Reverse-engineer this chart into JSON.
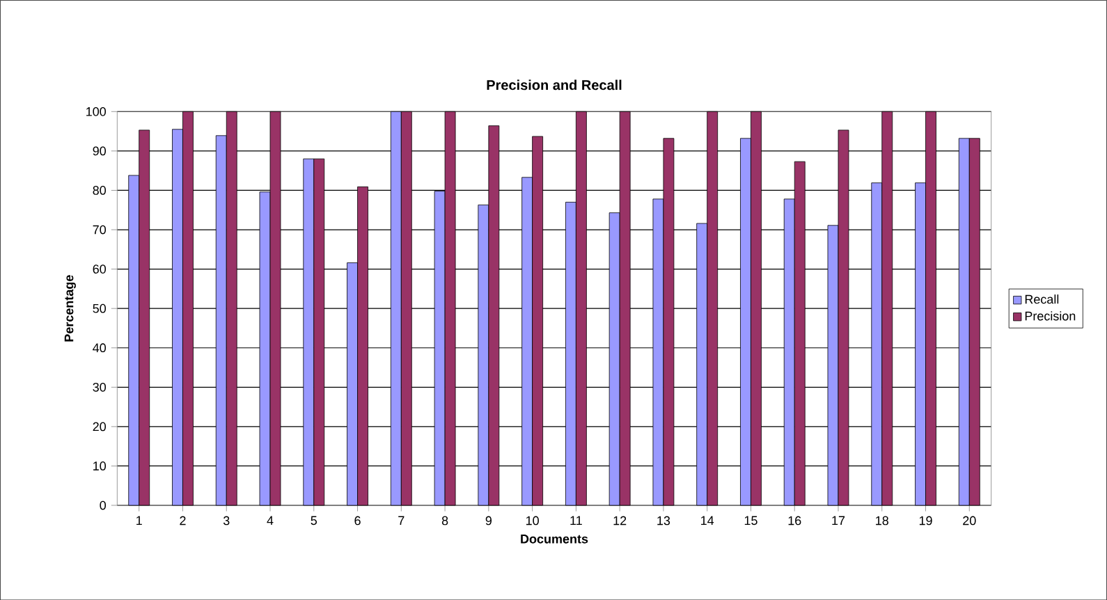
{
  "chart_data": {
    "type": "bar",
    "title": "Precision and Recall",
    "xlabel": "Documents",
    "ylabel": "Percentage",
    "categories": [
      "1",
      "2",
      "3",
      "4",
      "5",
      "6",
      "7",
      "8",
      "9",
      "10",
      "11",
      "12",
      "13",
      "14",
      "15",
      "16",
      "17",
      "18",
      "19",
      "20"
    ],
    "series": [
      {
        "name": "Recall",
        "color": "#9999ff",
        "values": [
          83.8,
          95.5,
          93.9,
          79.6,
          88,
          61.6,
          100,
          79.8,
          76.3,
          83.3,
          77,
          74.3,
          77.8,
          71.6,
          93.2,
          77.8,
          71.1,
          81.9,
          81.9,
          93.2
        ]
      },
      {
        "name": "Precision",
        "color": "#993366",
        "values": [
          95.3,
          100,
          100,
          100,
          88,
          80.9,
          100,
          100,
          96.4,
          93.7,
          100,
          100,
          93.2,
          100,
          100,
          87.3,
          95.3,
          100,
          100,
          93.2
        ]
      }
    ],
    "ylim": [
      0,
      100
    ],
    "yticks": [
      0,
      10,
      20,
      30,
      40,
      50,
      60,
      70,
      80,
      90,
      100
    ],
    "grid": "y",
    "legend": "right"
  }
}
